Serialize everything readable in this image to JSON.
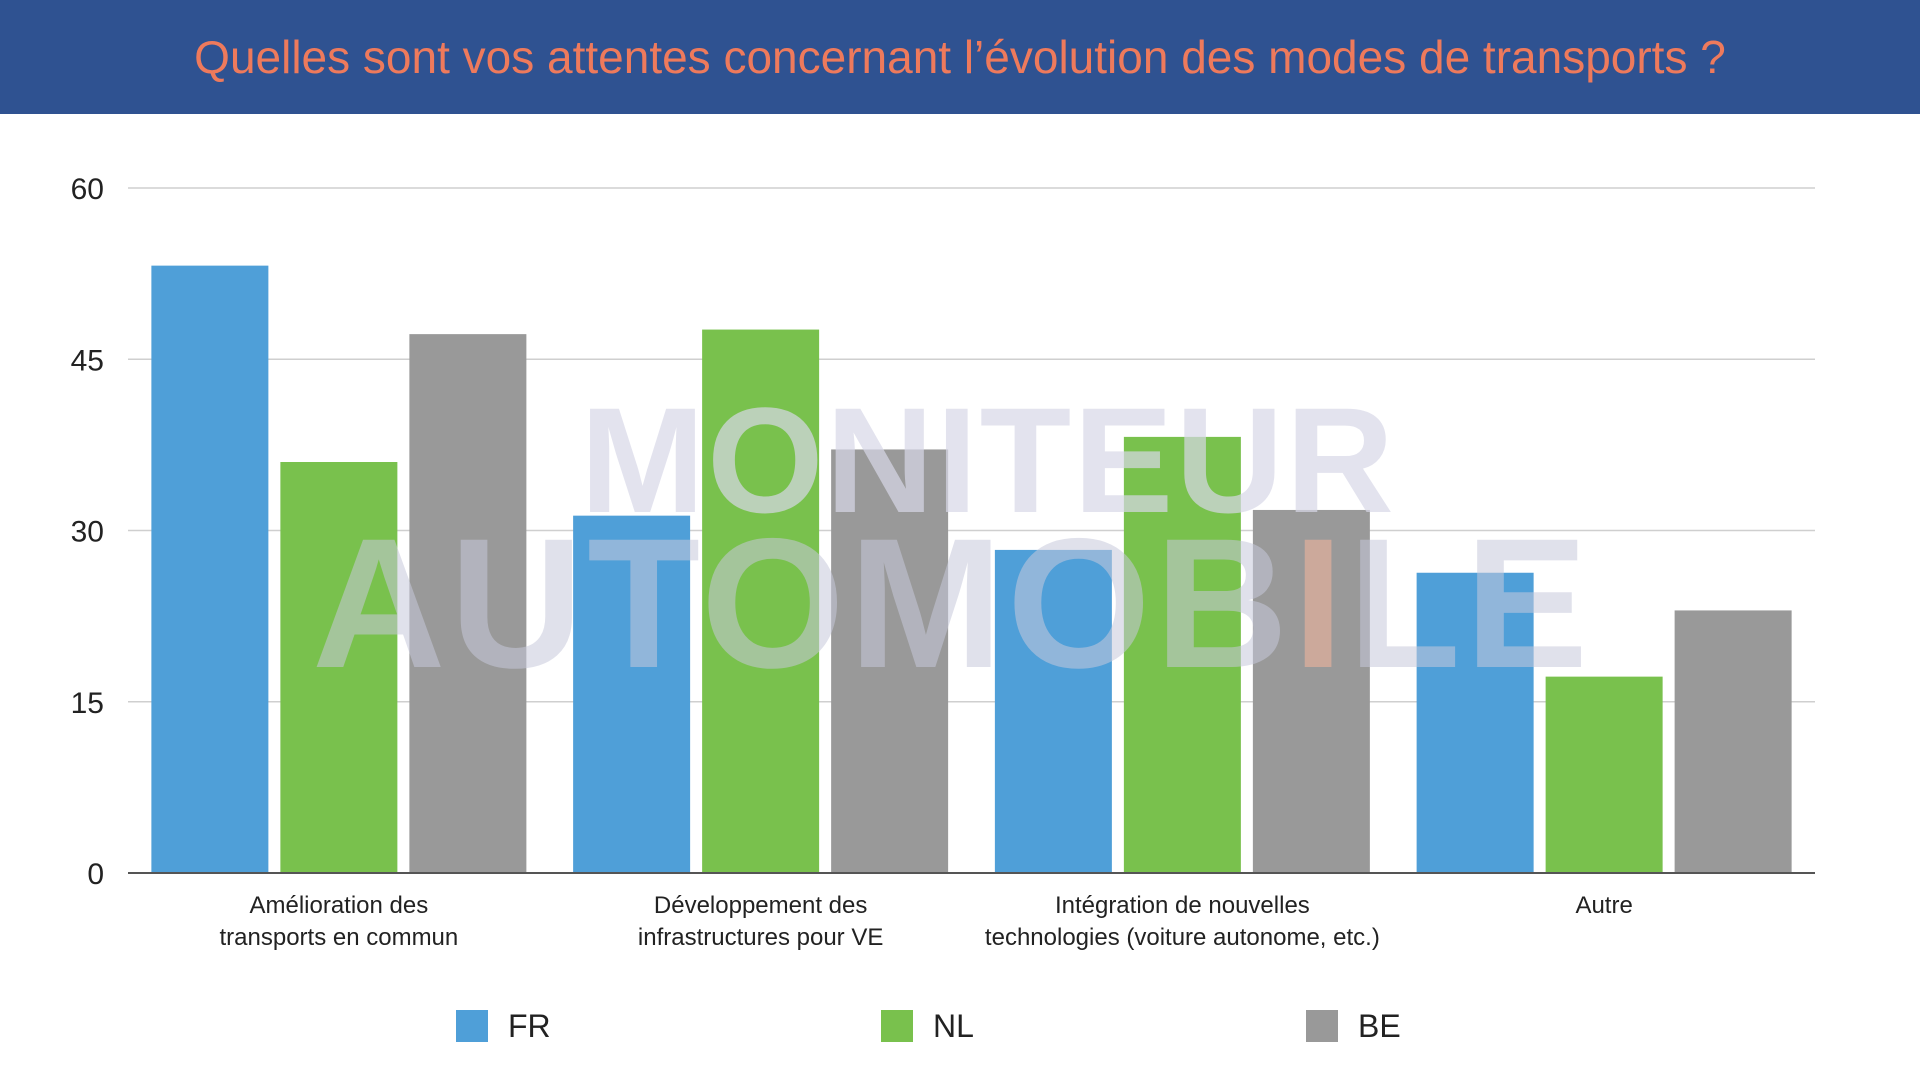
{
  "header": {
    "title": "Quelles sont vos attentes concernant l’évolution des modes de transports  ?"
  },
  "watermark": {
    "line1": "MONITEUR",
    "line2_a": "AUTOMOB",
    "line2_accent": "I",
    "line2_b": "LE"
  },
  "colors": {
    "header_bg": "#2f5291",
    "title": "#ee7a5c",
    "FR": "#4f9fd8",
    "NL": "#79c14d",
    "BE": "#999999"
  },
  "chart_data": {
    "type": "bar",
    "title": "Quelles sont vos attentes concernant l’évolution des modes de transports  ?",
    "xlabel": "",
    "ylabel": "",
    "ylim": [
      0,
      60
    ],
    "yticks": [
      0,
      15,
      30,
      45,
      60
    ],
    "grid": true,
    "legend_position": "bottom",
    "categories": [
      [
        "Amélioration des",
        "transports en commun"
      ],
      [
        "Développement des",
        "infrastructures pour VE"
      ],
      [
        "Intégration de nouvelles",
        "technologies (voiture autonome, etc.)"
      ],
      [
        "Autre"
      ]
    ],
    "series": [
      {
        "name": "FR",
        "color": "#4f9fd8",
        "values": [
          53.2,
          31.3,
          28.3,
          26.3
        ]
      },
      {
        "name": "NL",
        "color": "#79c14d",
        "values": [
          36.0,
          47.6,
          38.2,
          17.2
        ]
      },
      {
        "name": "BE",
        "color": "#999999",
        "values": [
          47.2,
          37.1,
          31.8,
          23.0
        ]
      }
    ]
  }
}
